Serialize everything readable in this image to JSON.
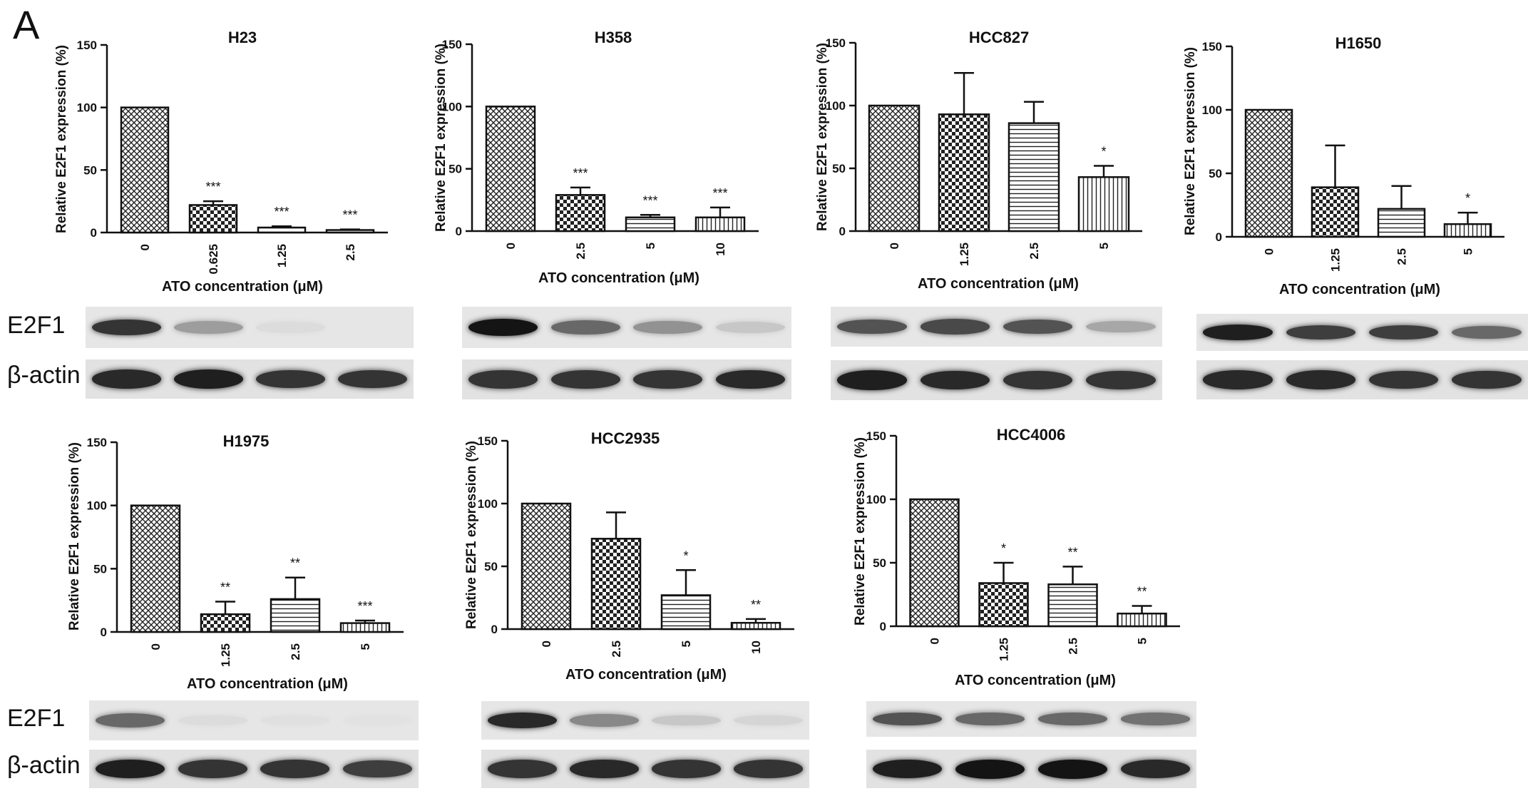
{
  "figure": {
    "panel_label": "A",
    "blot_labels": {
      "e2f1": "E2F1",
      "actin": "β-actin"
    }
  },
  "chart_data": [
    {
      "type": "bar",
      "title": "H23",
      "xlabel": "ATO concentration (μM)",
      "ylabel": "Relative E2F1 expression (%)",
      "ylim": [
        0,
        150
      ],
      "yticks": [
        0,
        50,
        100,
        150
      ],
      "categories": [
        "0",
        "0.625",
        "1.25",
        "2.5"
      ],
      "values": [
        100,
        22,
        4,
        2
      ],
      "errors": [
        0,
        3,
        1,
        0.5
      ],
      "significance": [
        "",
        "***",
        "***",
        "***"
      ],
      "patterns": [
        "cross",
        "check",
        "hline",
        "hline"
      ],
      "blot": {
        "e2f1": [
          0.85,
          0.35,
          0.05,
          0.0
        ],
        "actin": [
          0.9,
          0.95,
          0.85,
          0.85
        ]
      }
    },
    {
      "type": "bar",
      "title": "H358",
      "xlabel": "ATO concentration (μM)",
      "ylabel": "Relative E2F1 expression (%)",
      "ylim": [
        0,
        150
      ],
      "yticks": [
        0,
        50,
        100,
        150
      ],
      "categories": [
        "0",
        "2.5",
        "5",
        "10"
      ],
      "values": [
        100,
        29,
        11,
        11
      ],
      "errors": [
        0,
        6,
        2,
        8
      ],
      "significance": [
        "",
        "***",
        "***",
        "***"
      ],
      "patterns": [
        "cross",
        "check",
        "hline",
        "vline"
      ],
      "blot": {
        "e2f1": [
          1.0,
          0.6,
          0.4,
          0.15
        ],
        "actin": [
          0.85,
          0.85,
          0.85,
          0.9
        ]
      }
    },
    {
      "type": "bar",
      "title": "HCC827",
      "xlabel": "ATO concentration (μM)",
      "ylabel": "Relative E2F1 expression (%)",
      "ylim": [
        0,
        150
      ],
      "yticks": [
        0,
        50,
        100,
        150
      ],
      "categories": [
        "0",
        "1.25",
        "2.5",
        "5"
      ],
      "values": [
        100,
        93,
        86,
        43
      ],
      "errors": [
        0,
        33,
        17,
        9
      ],
      "significance": [
        "",
        "",
        "",
        "*"
      ],
      "patterns": [
        "cross",
        "check",
        "hline",
        "vline"
      ],
      "blot": {
        "e2f1": [
          0.7,
          0.75,
          0.7,
          0.3
        ],
        "actin": [
          0.95,
          0.9,
          0.85,
          0.85
        ]
      }
    },
    {
      "type": "bar",
      "title": "H1650",
      "xlabel": "ATO concentration (μM)",
      "ylabel": "Relative E2F1 expression (%)",
      "ylim": [
        0,
        150
      ],
      "yticks": [
        0,
        50,
        100,
        150
      ],
      "categories": [
        "0",
        "1.25",
        "2.5",
        "5"
      ],
      "values": [
        100,
        39,
        22,
        10
      ],
      "errors": [
        0,
        33,
        18,
        9
      ],
      "significance": [
        "",
        "",
        "",
        "*"
      ],
      "patterns": [
        "cross",
        "check",
        "hline",
        "vline"
      ],
      "blot": {
        "e2f1": [
          0.95,
          0.8,
          0.8,
          0.6
        ],
        "actin": [
          0.9,
          0.9,
          0.85,
          0.85
        ]
      }
    },
    {
      "type": "bar",
      "title": "H1975",
      "xlabel": "ATO concentration (μM)",
      "ylabel": "Relative E2F1 expression (%)",
      "ylim": [
        0,
        150
      ],
      "yticks": [
        0,
        50,
        100,
        150
      ],
      "categories": [
        "0",
        "1.25",
        "2.5",
        "5"
      ],
      "values": [
        100,
        14,
        26,
        7
      ],
      "errors": [
        0,
        10,
        17,
        2
      ],
      "significance": [
        "",
        "**",
        "**",
        "***"
      ],
      "patterns": [
        "cross",
        "check",
        "hline",
        "vline"
      ],
      "blot": {
        "e2f1": [
          0.6,
          0.05,
          0.03,
          0.02
        ],
        "actin": [
          0.95,
          0.85,
          0.85,
          0.8
        ]
      }
    },
    {
      "type": "bar",
      "title": "HCC2935",
      "xlabel": "ATO concentration (μM)",
      "ylabel": "Relative E2F1 expression (%)",
      "ylim": [
        0,
        150
      ],
      "yticks": [
        0,
        50,
        100,
        150
      ],
      "categories": [
        "0",
        "2.5",
        "5",
        "10"
      ],
      "values": [
        100,
        72,
        27,
        5
      ],
      "errors": [
        0,
        21,
        20,
        3
      ],
      "significance": [
        "",
        "",
        "*",
        "**"
      ],
      "patterns": [
        "cross",
        "check",
        "hline",
        "vline"
      ],
      "blot": {
        "e2f1": [
          0.9,
          0.45,
          0.15,
          0.08
        ],
        "actin": [
          0.85,
          0.9,
          0.85,
          0.85
        ]
      }
    },
    {
      "type": "bar",
      "title": "HCC4006",
      "xlabel": "ATO concentration (μM)",
      "ylabel": "Relative E2F1 expression (%)",
      "ylim": [
        0,
        150
      ],
      "yticks": [
        0,
        50,
        100,
        150
      ],
      "categories": [
        "0",
        "1.25",
        "2.5",
        "5"
      ],
      "values": [
        100,
        34,
        33,
        10
      ],
      "errors": [
        0,
        16,
        14,
        6
      ],
      "significance": [
        "",
        "*",
        "**",
        "**"
      ],
      "patterns": [
        "cross",
        "check",
        "hline",
        "vline"
      ],
      "blot": {
        "e2f1": [
          0.7,
          0.6,
          0.6,
          0.55
        ],
        "actin": [
          0.95,
          1.0,
          1.0,
          0.9
        ]
      }
    }
  ]
}
